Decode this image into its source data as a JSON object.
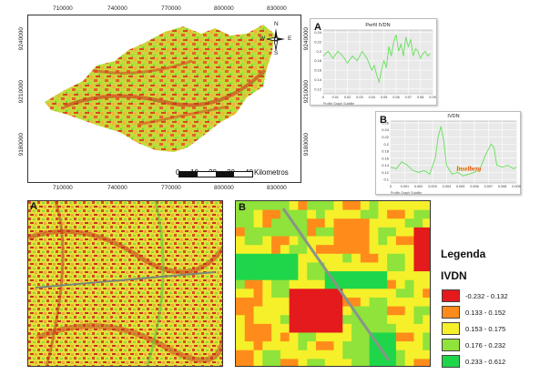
{
  "colors": {
    "class1": "#e41a1c",
    "class2": "#ff8c1a",
    "class3": "#f5f02a",
    "class4": "#8fe33a",
    "class5": "#1fd64b",
    "profile_line": "#66e05a",
    "frame": "#333333"
  },
  "main_map": {
    "top_ticks": [
      "710000",
      "740000",
      "770000",
      "800000",
      "830000"
    ],
    "bottom_ticks": [
      "710000",
      "740000",
      "770000",
      "800000",
      "830000"
    ],
    "left_ticks": [
      "9240000",
      "9210000",
      "9180000"
    ],
    "right_ticks": [
      "9240000",
      "9210000",
      "9180000"
    ],
    "north_arrow": {
      "N": "N",
      "S": "S",
      "E": "E",
      "W": "W",
      "icon": "compass-rose-icon"
    },
    "scale_labels": [
      "0",
      "10",
      "20",
      "30",
      "40"
    ],
    "scale_unit": "Kilometros"
  },
  "chart_data": [
    {
      "type": "line",
      "panel_letter": "A",
      "title": "Perfil IVDN",
      "xlabel": "Profile Graph Subtitle",
      "xticks": [
        "0",
        "0.01",
        "0.02",
        "0.03",
        "0.04",
        "0.05",
        "0.06",
        "0.07",
        "0.08",
        "0.09"
      ],
      "yticks": [
        "0.24",
        "0.22",
        "0.2",
        "0.18",
        "0.16",
        "0.14",
        "0.12"
      ],
      "ylim": [
        0.11,
        0.245
      ],
      "xlim": [
        0,
        0.09
      ],
      "grid": true,
      "series": [
        {
          "x": [
            0,
            0.004,
            0.008,
            0.012,
            0.016,
            0.02,
            0.024,
            0.028,
            0.032,
            0.036,
            0.04,
            0.042,
            0.044,
            0.046,
            0.048,
            0.05,
            0.052,
            0.054,
            0.056,
            0.058,
            0.06,
            0.062,
            0.064,
            0.066,
            0.068,
            0.07,
            0.072,
            0.074,
            0.076,
            0.078,
            0.08,
            0.082,
            0.084,
            0.086,
            0.088
          ],
          "y": [
            0.19,
            0.2,
            0.185,
            0.2,
            0.19,
            0.175,
            0.19,
            0.18,
            0.2,
            0.185,
            0.16,
            0.17,
            0.15,
            0.135,
            0.16,
            0.18,
            0.165,
            0.21,
            0.19,
            0.22,
            0.235,
            0.2,
            0.215,
            0.19,
            0.23,
            0.21,
            0.225,
            0.19,
            0.205,
            0.2,
            0.185,
            0.195,
            0.2,
            0.19,
            0.195
          ]
        }
      ]
    },
    {
      "type": "line",
      "panel_letter": "B",
      "title": "IVDN",
      "xlabel": "Profile Graph Subtitle",
      "xticks": [
        "0",
        "0.001",
        "0.002",
        "0.003",
        "0.004",
        "0.005",
        "0.006",
        "0.007",
        "0.008",
        "0.009"
      ],
      "yticks": [
        "0.26",
        "0.24",
        "0.22",
        "0.2",
        "0.18",
        "0.16",
        "0.14",
        "0.12",
        "0.1"
      ],
      "ylim": [
        0.09,
        0.265
      ],
      "xlim": [
        0,
        0.009
      ],
      "grid": true,
      "annotation": "Inselberg",
      "series": [
        {
          "x": [
            0,
            0.0004,
            0.0008,
            0.0012,
            0.0016,
            0.002,
            0.0024,
            0.0028,
            0.0032,
            0.0034,
            0.0036,
            0.0038,
            0.004,
            0.0044,
            0.0048,
            0.0052,
            0.0056,
            0.006,
            0.0064,
            0.0068,
            0.0072,
            0.0074,
            0.0076,
            0.008,
            0.0084,
            0.0088,
            0.009
          ],
          "y": [
            0.135,
            0.13,
            0.15,
            0.14,
            0.125,
            0.12,
            0.125,
            0.115,
            0.16,
            0.22,
            0.25,
            0.21,
            0.14,
            0.115,
            0.12,
            0.11,
            0.115,
            0.12,
            0.13,
            0.17,
            0.2,
            0.19,
            0.14,
            0.135,
            0.14,
            0.13,
            0.135
          ]
        }
      ]
    }
  ],
  "inset_a": {
    "letter": "A"
  },
  "inset_b": {
    "letter": "B"
  },
  "legend": {
    "title": "Legenda",
    "subtitle": "IVDN",
    "items": [
      {
        "label": "-0.232 - 0.132",
        "color": "#e41a1c"
      },
      {
        "label": "0.133 - 0.152",
        "color": "#ff8c1a"
      },
      {
        "label": "0.153 - 0.175",
        "color": "#f5f02a"
      },
      {
        "label": "0.176 - 0.232",
        "color": "#8fe33a"
      },
      {
        "label": "0.233 - 0.612",
        "color": "#1fd64b"
      }
    ]
  }
}
